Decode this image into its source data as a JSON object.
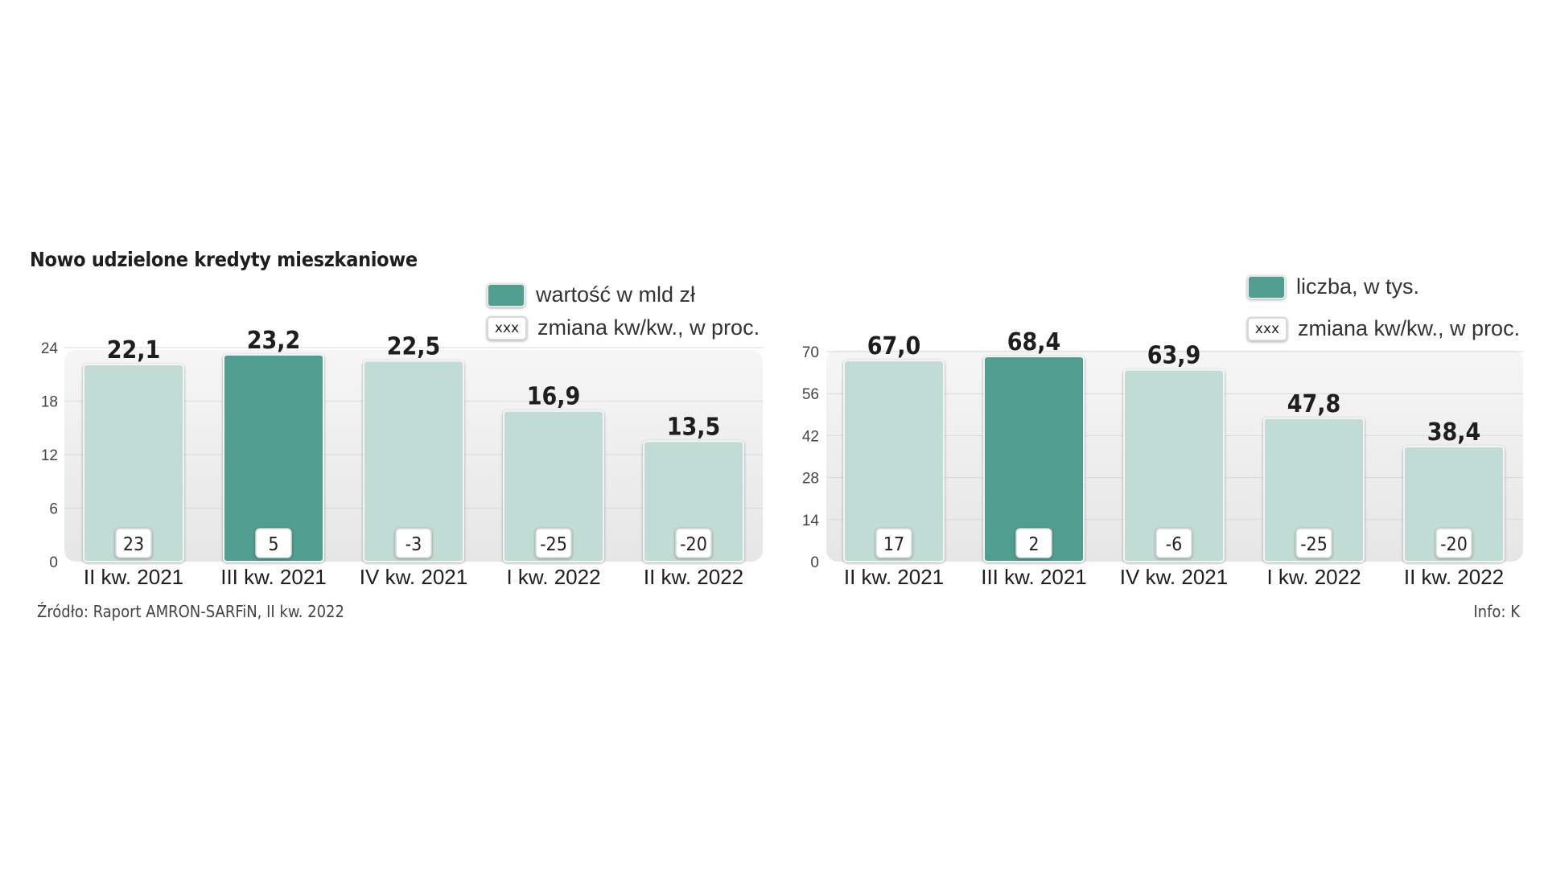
{
  "title": "Nowo udzielone kredyty mieszkaniowe",
  "source": "Źródło: Raport AMRON-SARFiN, II kw. 2022",
  "info": "Info: K",
  "colors": {
    "highlight": "#4f9e90",
    "normal": "#c0dcd4",
    "panel": "#eeeeee"
  },
  "legend_left": {
    "value_label": "wartość w mld zł",
    "change_box": "xxx",
    "change_label": "zmiana kw/kw., w proc."
  },
  "legend_right": {
    "value_label": "liczba, w tys.",
    "change_box": "xxx",
    "change_label": "zmiana kw/kw., w proc."
  },
  "chart_data": [
    {
      "type": "bar",
      "title": "",
      "categories": [
        "II kw. 2021",
        "III kw. 2021",
        "IV kw. 2021",
        "I kw. 2022",
        "II kw. 2022"
      ],
      "series": [
        {
          "name": "wartość w mld zł",
          "values": [
            22.1,
            23.2,
            22.5,
            16.9,
            13.5
          ],
          "value_labels": [
            "22,1",
            "23,2",
            "22,5",
            "16,9",
            "13,5"
          ]
        },
        {
          "name": "zmiana kw/kw., w proc.",
          "values": [
            23,
            5,
            -3,
            -25,
            -20
          ],
          "value_labels": [
            "23",
            "5",
            "-3",
            "-25",
            "-20"
          ]
        }
      ],
      "highlight_index": 1,
      "yticks": [
        "0",
        "6",
        "12",
        "18",
        "24"
      ],
      "ylim": [
        0,
        24
      ],
      "grid": true
    },
    {
      "type": "bar",
      "title": "",
      "categories": [
        "II kw. 2021",
        "III kw. 2021",
        "IV kw. 2021",
        "I kw. 2022",
        "II kw. 2022"
      ],
      "series": [
        {
          "name": "liczba, w tys.",
          "values": [
            67.0,
            68.4,
            63.9,
            47.8,
            38.4
          ],
          "value_labels": [
            "67,0",
            "68,4",
            "63,9",
            "47,8",
            "38,4"
          ]
        },
        {
          "name": "zmiana kw/kw., w proc.",
          "values": [
            17,
            2,
            -6,
            -25,
            -20
          ],
          "value_labels": [
            "17",
            "2",
            "-6",
            "-25",
            "-20"
          ]
        }
      ],
      "highlight_index": 1,
      "yticks": [
        "0",
        "14",
        "28",
        "42",
        "56",
        "70"
      ],
      "ylim": [
        0,
        70
      ],
      "grid": true
    }
  ]
}
